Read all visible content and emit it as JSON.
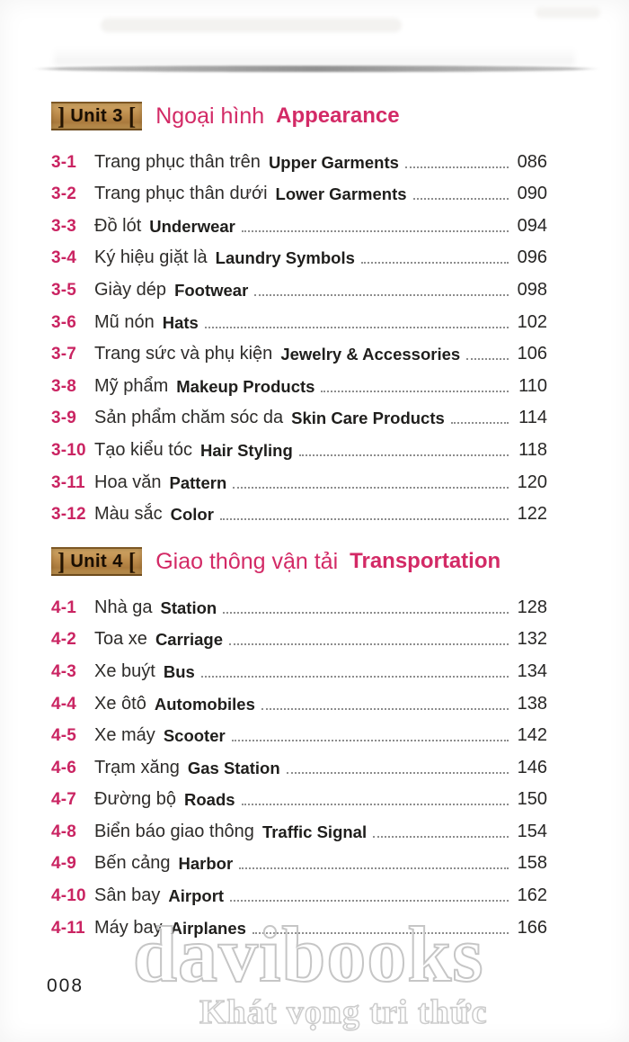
{
  "colors": {
    "accent_pink": "#d32a66",
    "number_pink": "#ca2462",
    "badge_background": "#bd8c4c",
    "badge_text": "#190e02",
    "dot_leader": "#8d8d8d",
    "body_text": "#2e2c2a",
    "watermark_outline": "#c6c6c6"
  },
  "badge": {
    "bracket_left": "]",
    "bracket_right": "["
  },
  "sections": [
    {
      "unit_label": "Unit 3",
      "title_vi": "Ngoại hình",
      "title_en": "Appearance",
      "entries": [
        {
          "num": "3-1",
          "vi": "Trang phục thân trên",
          "en": "Upper Garments",
          "page": "086"
        },
        {
          "num": "3-2",
          "vi": "Trang phục thân dưới",
          "en": "Lower Garments",
          "page": "090"
        },
        {
          "num": "3-3",
          "vi": "Đồ lót",
          "en": "Underwear",
          "page": "094"
        },
        {
          "num": "3-4",
          "vi": "Ký hiệu giặt là",
          "en": "Laundry Symbols",
          "page": "096"
        },
        {
          "num": "3-5",
          "vi": "Giày dép",
          "en": "Footwear",
          "page": "098"
        },
        {
          "num": "3-6",
          "vi": "Mũ nón",
          "en": "Hats",
          "page": "102"
        },
        {
          "num": "3-7",
          "vi": "Trang sức và phụ kiện",
          "en": "Jewelry & Accessories",
          "page": "106"
        },
        {
          "num": "3-8",
          "vi": "Mỹ phẩm",
          "en": "Makeup Products",
          "page": "110"
        },
        {
          "num": "3-9",
          "vi": "Sản phẩm chăm sóc da",
          "en": "Skin Care Products",
          "page": "114"
        },
        {
          "num": "3-10",
          "vi": "Tạo kiểu tóc",
          "en": "Hair Styling",
          "page": "118"
        },
        {
          "num": "3-11",
          "vi": "Hoa văn",
          "en": "Pattern",
          "page": "120"
        },
        {
          "num": "3-12",
          "vi": "Màu sắc",
          "en": "Color",
          "page": "122"
        }
      ]
    },
    {
      "unit_label": "Unit 4",
      "title_vi": "Giao thông vận tải",
      "title_en": "Transportation",
      "entries": [
        {
          "num": "4-1",
          "vi": "Nhà ga",
          "en": "Station",
          "page": "128"
        },
        {
          "num": "4-2",
          "vi": "Toa xe",
          "en": "Carriage",
          "page": "132"
        },
        {
          "num": "4-3",
          "vi": "Xe buýt",
          "en": "Bus",
          "page": "134"
        },
        {
          "num": "4-4",
          "vi": "Xe ôtô",
          "en": "Automobiles",
          "page": "138"
        },
        {
          "num": "4-5",
          "vi": "Xe máy",
          "en": "Scooter",
          "page": "142"
        },
        {
          "num": "4-6",
          "vi": "Trạm xăng",
          "en": "Gas Station",
          "page": "146"
        },
        {
          "num": "4-7",
          "vi": "Đường bộ",
          "en": "Roads",
          "page": "150"
        },
        {
          "num": "4-8",
          "vi": "Biển báo giao thông",
          "en": "Traffic Signal",
          "page": "154"
        },
        {
          "num": "4-9",
          "vi": "Bến cảng",
          "en": "Harbor",
          "page": "158"
        },
        {
          "num": "4-10",
          "vi": "Sân bay",
          "en": "Airport",
          "page": "162"
        },
        {
          "num": "4-11",
          "vi": "Máy bay",
          "en": "Airplanes",
          "page": "166"
        }
      ]
    }
  ],
  "footer": {
    "page_number": "008",
    "watermark_main": "davibooks",
    "watermark_sub": "Khát vọng tri thức"
  }
}
